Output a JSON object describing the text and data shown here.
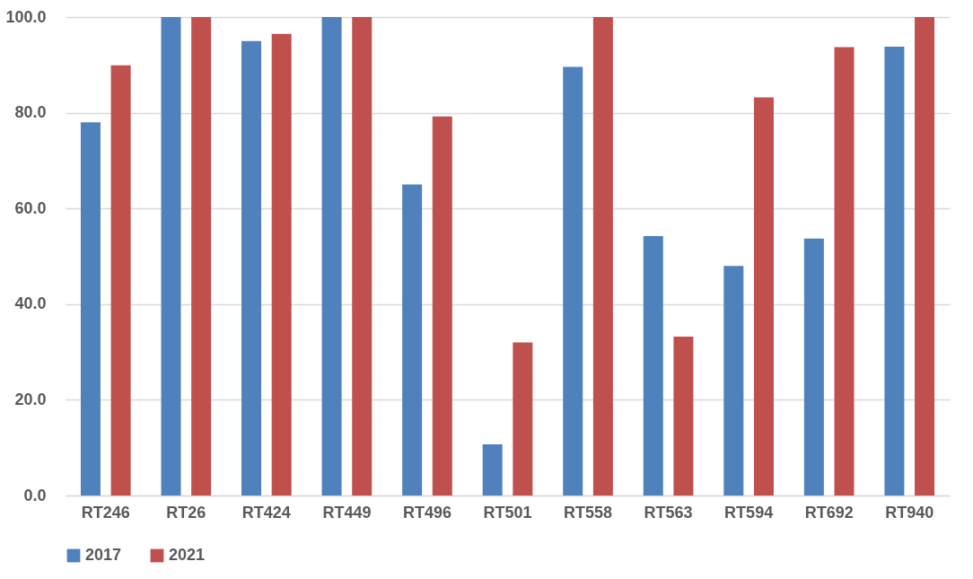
{
  "chart_data": {
    "type": "bar",
    "categories": [
      "RT246",
      "RT26",
      "RT424",
      "RT449",
      "RT496",
      "RT501",
      "RT558",
      "RT563",
      "RT594",
      "RT692",
      "RT940"
    ],
    "series": [
      {
        "name": "2017",
        "color": "#4f81bd",
        "values": [
          78.0,
          100,
          95.0,
          100,
          65.0,
          10.7,
          89.6,
          54.2,
          48.0,
          53.7,
          93.8
        ]
      },
      {
        "name": "2021",
        "color": "#c0504d",
        "values": [
          89.9,
          100,
          96.5,
          100,
          79.2,
          32.0,
          100,
          33.2,
          83.2,
          93.7,
          100
        ]
      }
    ],
    "ylim": [
      0,
      100
    ],
    "yticks": [
      {
        "value": 0,
        "label": "0.0"
      },
      {
        "value": 20,
        "label": "20.0"
      },
      {
        "value": 40,
        "label": "40.0"
      },
      {
        "value": 60,
        "label": "60.0"
      },
      {
        "value": 80,
        "label": "80.0"
      },
      {
        "value": 100,
        "label": "100.0"
      }
    ],
    "grid": "y",
    "legend": "bottom"
  }
}
